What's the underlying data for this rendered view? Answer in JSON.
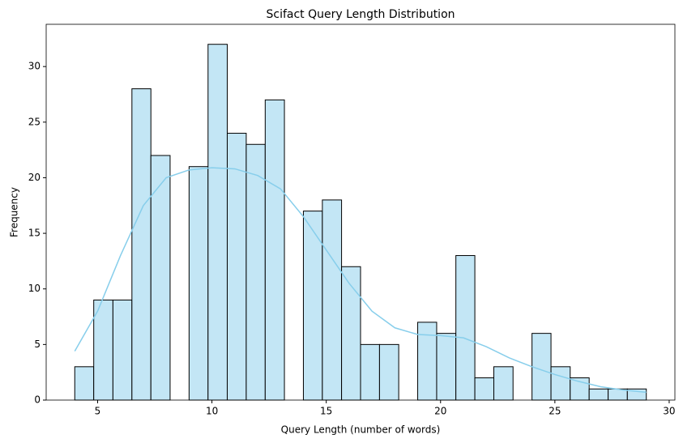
{
  "chart_data": {
    "type": "histogram",
    "title": "Scifact Query Length Distribution",
    "x_label": "Query Length (number of words)",
    "y_label": "Frequency",
    "bins": [
      4,
      4.83,
      5.67,
      6.5,
      7.33,
      8.17,
      9,
      9.83,
      10.67,
      11.5,
      12.33,
      13.17,
      14,
      14.83,
      15.67,
      16.5,
      17.33,
      18.17,
      19,
      19.83,
      20.67,
      21.5,
      22.33,
      23.17,
      24,
      24.83,
      25.67,
      26.5,
      27.33,
      28.17,
      29
    ],
    "values": [
      3,
      9,
      9,
      28,
      22,
      0,
      21,
      32,
      24,
      23,
      27,
      0,
      17,
      18,
      12,
      5,
      5,
      0,
      7,
      6,
      13,
      2,
      3,
      0,
      6,
      3,
      2,
      1,
      1,
      1
    ],
    "color": "#c3e6f5",
    "edge_color": "#000000",
    "kde": {
      "color": "#87ceeb",
      "x": [
        4,
        5,
        6,
        7,
        8,
        9,
        10,
        11,
        12,
        13,
        14,
        15,
        16,
        17,
        18,
        19,
        20,
        21,
        22,
        23,
        24,
        25,
        26,
        27,
        28,
        29
      ],
      "values": [
        4.4,
        8,
        13,
        17.5,
        20,
        20.7,
        20.9,
        20.8,
        20.2,
        19,
        16.5,
        13.5,
        10.5,
        8,
        6.5,
        5.9,
        5.8,
        5.6,
        4.8,
        3.8,
        3,
        2.3,
        1.7,
        1.2,
        0.9,
        0.7
      ]
    },
    "xlim": [
      2.75,
      30.25
    ],
    "ylim": [
      0,
      33.8
    ],
    "xticks": [
      5,
      10,
      15,
      20,
      25,
      30
    ],
    "yticks": [
      0,
      5,
      10,
      15,
      20,
      25,
      30
    ]
  }
}
